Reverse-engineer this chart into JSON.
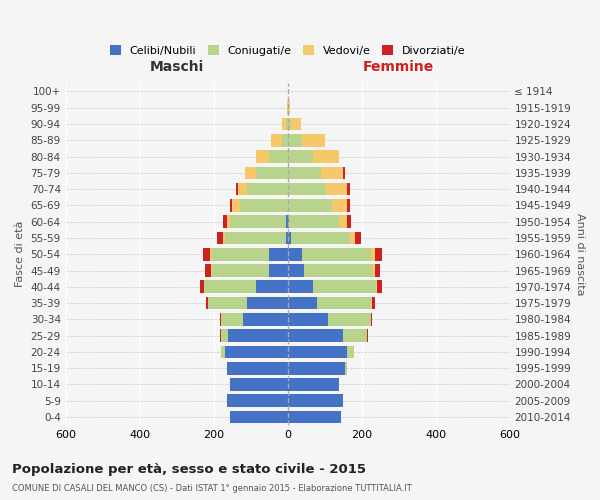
{
  "age_groups": [
    "0-4",
    "5-9",
    "10-14",
    "15-19",
    "20-24",
    "25-29",
    "30-34",
    "35-39",
    "40-44",
    "45-49",
    "50-54",
    "55-59",
    "60-64",
    "65-69",
    "70-74",
    "75-79",
    "80-84",
    "85-89",
    "90-94",
    "95-99",
    "100+"
  ],
  "birth_years": [
    "2010-2014",
    "2005-2009",
    "2000-2004",
    "1995-1999",
    "1990-1994",
    "1985-1989",
    "1980-1984",
    "1975-1979",
    "1970-1974",
    "1965-1969",
    "1960-1964",
    "1955-1959",
    "1950-1954",
    "1945-1949",
    "1940-1944",
    "1935-1939",
    "1930-1934",
    "1925-1929",
    "1920-1924",
    "1915-1919",
    "≤ 1914"
  ],
  "maschi": {
    "celibi": [
      155,
      165,
      155,
      165,
      170,
      160,
      120,
      110,
      85,
      50,
      50,
      5,
      5,
      0,
      0,
      0,
      0,
      0,
      0,
      0,
      0
    ],
    "coniugati": [
      0,
      0,
      0,
      0,
      10,
      20,
      60,
      105,
      140,
      155,
      155,
      165,
      150,
      130,
      110,
      85,
      50,
      15,
      5,
      0,
      0
    ],
    "vedovi": [
      0,
      0,
      0,
      0,
      0,
      0,
      0,
      0,
      2,
      3,
      5,
      5,
      10,
      20,
      25,
      30,
      35,
      30,
      10,
      2,
      0
    ],
    "divorziati": [
      0,
      0,
      0,
      0,
      0,
      2,
      3,
      5,
      10,
      15,
      20,
      15,
      10,
      5,
      5,
      0,
      0,
      0,
      0,
      0,
      0
    ]
  },
  "femmine": {
    "nubili": [
      145,
      150,
      140,
      155,
      160,
      150,
      110,
      80,
      70,
      45,
      40,
      8,
      5,
      0,
      0,
      0,
      0,
      0,
      0,
      0,
      0
    ],
    "coniugate": [
      0,
      0,
      0,
      5,
      20,
      65,
      115,
      145,
      170,
      185,
      185,
      160,
      135,
      120,
      105,
      90,
      70,
      40,
      10,
      2,
      0
    ],
    "vedove": [
      0,
      0,
      0,
      0,
      0,
      0,
      0,
      2,
      3,
      5,
      10,
      15,
      20,
      40,
      55,
      60,
      70,
      60,
      25,
      5,
      0
    ],
    "divorziate": [
      0,
      0,
      0,
      0,
      0,
      2,
      3,
      8,
      12,
      15,
      20,
      15,
      12,
      8,
      8,
      5,
      0,
      0,
      0,
      0,
      0
    ]
  },
  "colors": {
    "celibi": "#4472c4",
    "coniugati": "#b8d48c",
    "vedovi": "#f5c96a",
    "divorziati": "#cc2222"
  },
  "title": "Popolazione per età, sesso e stato civile - 2015",
  "subtitle": "COMUNE DI CASALI DEL MANCO (CS) - Dati ISTAT 1° gennaio 2015 - Elaborazione TUTTITALIA.IT",
  "ylabel_left": "Fasce di età",
  "ylabel_right": "Anni di nascita",
  "xlim": 600,
  "legend_labels": [
    "Celibi/Nubili",
    "Coniugati/e",
    "Vedovi/e",
    "Divorziati/e"
  ],
  "maschi_label": "Maschi",
  "femmine_label": "Femmine",
  "bg_color": "#f5f5f5"
}
